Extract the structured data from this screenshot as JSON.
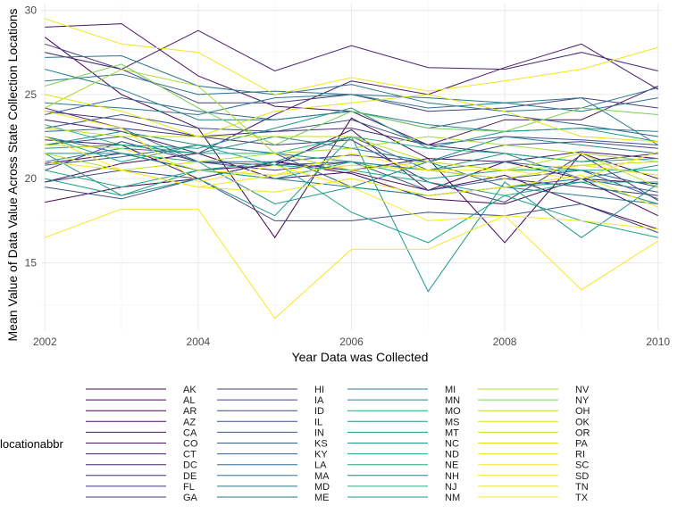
{
  "chart_data": {
    "type": "line",
    "xlabel": "Year Data was Collected",
    "ylabel": "Mean Value of Data Value Across State Collection Locations",
    "xlim": [
      2001.95,
      2010.05
    ],
    "ylim": [
      11,
      30.4
    ],
    "x_ticks": [
      2002,
      2004,
      2006,
      2008,
      2010
    ],
    "y_ticks": [
      15,
      20,
      25,
      30
    ],
    "grid": true,
    "legend_title": "locationabbr",
    "legend_placement": "bottom",
    "x": [
      2002,
      2003,
      2004,
      2005,
      2006,
      2007,
      2008,
      2009,
      2010
    ],
    "series": [
      {
        "name": "AK",
        "color": "#440154",
        "values": [
          28.4,
          25.0,
          23.0,
          16.5,
          23.6,
          21.2,
          16.2,
          21.5,
          20.0
        ]
      },
      {
        "name": "AL",
        "color": "#450559",
        "values": [
          18.6,
          19.5,
          20.0,
          21.0,
          20.3,
          18.8,
          18.5,
          20.0,
          17.8
        ]
      },
      {
        "name": "AR",
        "color": "#46085C",
        "values": [
          19.8,
          20.9,
          21.5,
          20.0,
          20.4,
          19.3,
          21.0,
          20.0,
          19.7
        ]
      },
      {
        "name": "AZ",
        "color": "#470D60",
        "values": [
          20.9,
          21.5,
          20.5,
          20.8,
          22.9,
          19.3,
          20.2,
          18.5,
          17.0
        ]
      },
      {
        "name": "CA",
        "color": "#481467",
        "values": [
          29.0,
          29.2,
          26.1,
          24.3,
          24.0,
          22.0,
          23.5,
          23.5,
          25.5
        ]
      },
      {
        "name": "CO",
        "color": "#481769",
        "values": [
          22.3,
          22.0,
          20.0,
          21.0,
          20.5,
          21.2,
          21.0,
          21.6,
          21.2
        ]
      },
      {
        "name": "CT",
        "color": "#481B6D",
        "values": [
          23.5,
          22.8,
          21.5,
          23.8,
          25.8,
          25.0,
          26.6,
          28.0,
          25.3
        ]
      },
      {
        "name": "DC",
        "color": "#482071",
        "values": [
          27.5,
          26.5,
          28.8,
          26.4,
          27.9,
          26.6,
          26.5,
          27.5,
          26.4
        ]
      },
      {
        "name": "DE",
        "color": "#472D7B",
        "values": [
          24.0,
          23.5,
          22.5,
          22.8,
          23.0,
          22.0,
          21.5,
          21.0,
          21.5
        ]
      },
      {
        "name": "FL",
        "color": "#46337E",
        "values": [
          20.5,
          22.2,
          21.0,
          20.5,
          21.0,
          20.5,
          20.0,
          19.5,
          19.0
        ]
      },
      {
        "name": "GA",
        "color": "#453781",
        "values": [
          24.2,
          23.0,
          22.5,
          22.0,
          22.3,
          19.8,
          18.6,
          21.4,
          18.7
        ]
      },
      {
        "name": "HI",
        "color": "#433E85",
        "values": [
          28.0,
          26.5,
          24.5,
          24.5,
          25.0,
          24.0,
          24.2,
          24.8,
          24.2
        ]
      },
      {
        "name": "IA",
        "color": "#404688",
        "values": [
          19.8,
          20.5,
          20.0,
          21.0,
          21.4,
          21.0,
          22.0,
          22.2,
          21.8
        ]
      },
      {
        "name": "ID",
        "color": "#3E4A89",
        "values": [
          19.5,
          18.8,
          20.0,
          17.5,
          17.5,
          18.0,
          17.8,
          18.5,
          16.8
        ]
      },
      {
        "name": "IL",
        "color": "#3B528B",
        "values": [
          23.0,
          23.8,
          23.0,
          22.8,
          23.5,
          22.0,
          22.5,
          22.3,
          22.0
        ]
      },
      {
        "name": "IN",
        "color": "#38598C",
        "values": [
          22.0,
          22.5,
          21.0,
          20.8,
          21.0,
          19.3,
          20.0,
          20.5,
          19.5
        ]
      },
      {
        "name": "KS",
        "color": "#355F8D",
        "values": [
          23.8,
          24.8,
          24.0,
          23.5,
          24.0,
          23.0,
          23.8,
          23.2,
          22.5
        ]
      },
      {
        "name": "KY",
        "color": "#33638D",
        "values": [
          20.8,
          21.3,
          22.0,
          21.5,
          19.5,
          19.0,
          19.5,
          20.0,
          19.2
        ]
      },
      {
        "name": "LA",
        "color": "#306A8E",
        "values": [
          22.8,
          23.0,
          21.0,
          21.0,
          22.5,
          20.5,
          21.0,
          20.5,
          18.8
        ]
      },
      {
        "name": "MA",
        "color": "#2D708E",
        "values": [
          25.8,
          26.2,
          25.0,
          25.2,
          25.0,
          24.8,
          24.5,
          24.0,
          24.8
        ]
      },
      {
        "name": "MD",
        "color": "#2B748E",
        "values": [
          27.2,
          27.3,
          25.5,
          25.0,
          25.6,
          24.5,
          24.0,
          24.2,
          25.4
        ]
      },
      {
        "name": "ME",
        "color": "#297A8E",
        "values": [
          22.5,
          21.5,
          20.5,
          20.0,
          19.5,
          21.0,
          19.5,
          19.0,
          18.5
        ]
      },
      {
        "name": "MI",
        "color": "#27808E",
        "values": [
          26.5,
          25.3,
          23.5,
          23.5,
          24.0,
          23.2,
          22.8,
          23.0,
          22.8
        ]
      },
      {
        "name": "MN",
        "color": "#25838E",
        "values": [
          21.0,
          21.8,
          21.5,
          22.5,
          21.8,
          21.0,
          22.5,
          22.0,
          21.5
        ]
      },
      {
        "name": "MO",
        "color": "#22A884",
        "values": [
          22.5,
          21.0,
          22.0,
          20.8,
          20.5,
          19.8,
          19.0,
          19.8,
          19.8
        ]
      },
      {
        "name": "MS",
        "color": "#21908D",
        "values": [
          22.0,
          22.8,
          22.0,
          21.5,
          21.0,
          20.5,
          21.5,
          20.0,
          20.8
        ]
      },
      {
        "name": "MT",
        "color": "#1F958B",
        "values": [
          21.5,
          21.5,
          21.0,
          18.5,
          19.5,
          19.0,
          19.5,
          19.8,
          18.5
        ]
      },
      {
        "name": "NC",
        "color": "#1F9A8A",
        "values": [
          21.8,
          22.0,
          21.8,
          23.0,
          24.2,
          21.8,
          22.8,
          23.0,
          22.2
        ]
      },
      {
        "name": "ND",
        "color": "#20A386",
        "values": [
          20.0,
          19.0,
          20.5,
          21.0,
          18.0,
          16.2,
          19.0,
          17.5,
          16.5
        ]
      },
      {
        "name": "NE",
        "color": "#22A785",
        "values": [
          20.5,
          19.5,
          20.5,
          20.0,
          21.0,
          20.0,
          20.5,
          20.5,
          20.5
        ]
      },
      {
        "name": "NH",
        "color": "#2A788E",
        "values": [
          24.5,
          24.2,
          23.8,
          24.8,
          25.0,
          24.2,
          24.5,
          24.8,
          22.0
        ]
      },
      {
        "name": "NJ",
        "color": "#28AE80",
        "values": [
          23.2,
          22.0,
          21.5,
          21.5,
          22.5,
          21.8,
          21.5,
          21.0,
          21.2
        ]
      },
      {
        "name": "NM",
        "color": "#1F968B",
        "values": [
          21.5,
          19.0,
          20.0,
          17.8,
          22.5,
          13.3,
          19.8,
          16.5,
          19.7
        ]
      },
      {
        "name": "NV",
        "color": "#A8DB34",
        "values": [
          24.2,
          26.5,
          25.5,
          21.5,
          21.8,
          22.5,
          22.0,
          21.5,
          21.0
        ]
      },
      {
        "name": "NY",
        "color": "#75D054",
        "values": [
          25.5,
          26.8,
          24.2,
          22.0,
          24.0,
          23.0,
          22.8,
          24.2,
          23.8
        ]
      },
      {
        "name": "OH",
        "color": "#B8DE29",
        "values": [
          21.5,
          20.5,
          21.0,
          21.5,
          20.5,
          21.0,
          20.5,
          20.8,
          21.0
        ]
      },
      {
        "name": "OK",
        "color": "#D8E219",
        "values": [
          22.0,
          21.8,
          20.5,
          20.2,
          20.8,
          20.5,
          20.0,
          20.8,
          20.2
        ]
      },
      {
        "name": "OR",
        "color": "#C2DF23",
        "values": [
          23.0,
          22.5,
          22.5,
          22.5,
          22.5,
          21.0,
          20.5,
          21.5,
          19.5
        ]
      },
      {
        "name": "PA",
        "color": "#E2E418",
        "values": [
          25.0,
          24.0,
          22.5,
          24.0,
          24.5,
          25.0,
          24.0,
          22.5,
          22.2
        ]
      },
      {
        "name": "RI",
        "color": "#F1E51D",
        "values": [
          29.5,
          28.0,
          27.5,
          25.0,
          26.0,
          25.2,
          25.8,
          26.5,
          27.8
        ]
      },
      {
        "name": "SC",
        "color": "#FDE725",
        "values": [
          24.0,
          23.0,
          19.8,
          20.8,
          19.5,
          17.5,
          17.8,
          17.5,
          17.0
        ]
      },
      {
        "name": "SD",
        "color": "#F8E621",
        "values": [
          16.5,
          18.2,
          18.2,
          11.7,
          15.8,
          15.8,
          17.8,
          13.4,
          16.3
        ]
      },
      {
        "name": "TN",
        "color": "#EDE51B",
        "values": [
          21.0,
          20.5,
          19.5,
          19.2,
          20.0,
          19.0,
          19.5,
          20.2,
          18.3
        ]
      },
      {
        "name": "TX",
        "color": "#FCE724",
        "values": [
          22.5,
          20.5,
          19.5,
          20.2,
          21.5,
          20.5,
          20.5,
          20.0,
          21.6
        ]
      }
    ],
    "legend_columns": [
      [
        "AK",
        "AL",
        "AR",
        "AZ",
        "CA",
        "CO",
        "CT",
        "DC",
        "DE",
        "FL",
        "GA"
      ],
      [
        "HI",
        "IA",
        "ID",
        "IL",
        "IN",
        "KS",
        "KY",
        "LA",
        "MA",
        "MD",
        "ME"
      ],
      [
        "MI",
        "MN",
        "MO",
        "MS",
        "MT",
        "NC",
        "ND",
        "NE",
        "NH",
        "NJ",
        "NM"
      ],
      [
        "NV",
        "NY",
        "OH",
        "OK",
        "OR",
        "PA",
        "RI",
        "SC",
        "SD",
        "TN",
        "TX"
      ]
    ]
  }
}
